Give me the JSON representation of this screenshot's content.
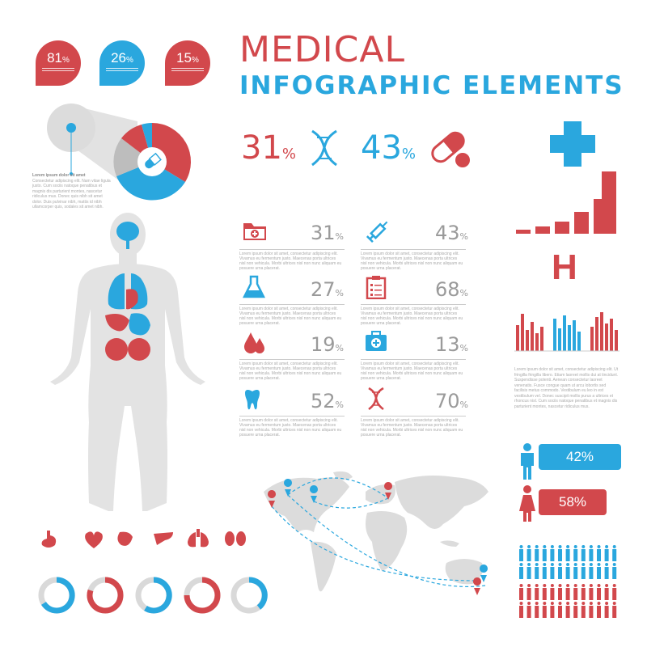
{
  "title": {
    "line1": "MEDICAL",
    "line2": "INFOGRAPHIC ELEMENTS"
  },
  "drops": [
    {
      "value": "81",
      "unit": "%",
      "color": "#d2484c"
    },
    {
      "value": "26",
      "unit": "%",
      "color": "#2aa7de"
    },
    {
      "value": "15",
      "unit": "%",
      "color": "#d2484c"
    }
  ],
  "pie_caption": {
    "heading": "Lorem ipsum dolor sit amet",
    "body": "Consectetur adipiscing elit. Nam vitae ligula justo. Cum sociis natoque penatibus et magnis dis parturient montes, nascetur ridiculus mus. Donec quis nibh sit amet dolor. Duis pulvinar nibh, mattis id nibh ullamcorper quis, sodales sit amet nibh."
  },
  "headline_stats": [
    {
      "value": "31",
      "unit": "%",
      "icon": "dna-icon",
      "color": "#d2484c"
    },
    {
      "value": "43",
      "unit": "%",
      "icon": "pill-icon",
      "color": "#2aa7de"
    }
  ],
  "stats": [
    {
      "value": "31",
      "unit": "%",
      "icon": "medical-folder-icon",
      "text": "Lorem ipsum dolor sit amet, consectetur adipiscing elit. Vivamus eu fermentum justo. Maecenas porta ultrices nisl non vehicula. Morbi ultrices nisl non nunc aliquam eu posuere urna placerat."
    },
    {
      "value": "43",
      "unit": "%",
      "icon": "syringe-icon",
      "text": "Lorem ipsum dolor sit amet, consectetur adipiscing elit. Vivamus eu fermentum justo. Maecenas porta ultrices nisl non vehicula. Morbi ultrices nisl non nunc aliquam eu posuere urna placerat."
    },
    {
      "value": "27",
      "unit": "%",
      "icon": "flask-icon",
      "text": "Lorem ipsum dolor sit amet, consectetur adipiscing elit. Vivamus eu fermentum justo. Maecenas porta ultrices nisl non vehicula. Morbi ultrices nisl non nunc aliquam eu posuere urna placerat."
    },
    {
      "value": "68",
      "unit": "%",
      "icon": "clipboard-icon",
      "text": "Lorem ipsum dolor sit amet, consectetur adipiscing elit. Vivamus eu fermentum justo. Maecenas porta ultrices nisl non vehicula. Morbi ultrices nisl non nunc aliquam eu posuere urna placerat."
    },
    {
      "value": "19",
      "unit": "%",
      "icon": "blood-drop-icon",
      "text": "Lorem ipsum dolor sit amet, consectetur adipiscing elit. Vivamus eu fermentum justo. Maecenas porta ultrices nisl non vehicula. Morbi ultrices nisl non nunc aliquam eu posuere urna placerat."
    },
    {
      "value": "13",
      "unit": "%",
      "icon": "first-aid-kit-icon",
      "text": "Lorem ipsum dolor sit amet, consectetur adipiscing elit. Vivamus eu fermentum justo. Maecenas porta ultrices nisl non vehicula. Morbi ultrices nisl non nunc aliquam eu posuere urna placerat."
    },
    {
      "value": "52",
      "unit": "%",
      "icon": "tooth-icon",
      "text": "Lorem ipsum dolor sit amet, consectetur adipiscing elit. Vivamus eu fermentum justo. Maecenas porta ultrices nisl non vehicula. Morbi ultrices nisl non nunc aliquam eu posuere urna placerat."
    },
    {
      "value": "70",
      "unit": "%",
      "icon": "dna-icon",
      "text": "Lorem ipsum dolor sit amet, consectetur adipiscing elit. Vivamus eu fermentum justo. Maecenas porta ultrices nisl non vehicula. Morbi ultrices nisl non nunc aliquam eu posuere urna placerat."
    }
  ],
  "hospital_letter": "H",
  "right_paragraph": "Lorem ipsum dolor sit amet, consectetur adipiscing elit. Ut fringilla fringilla libero. Etiam laoreet mollis dui at tincidunt. Suspendisse potenti. Aenean consectetur laoreet venenatis. Fusce congue quam ut arcu lobortis sed facilisis metus commodo. Vestibulum eu leo in est vestibulum vel. Donec suscipit mollis purus a ultrices et rhoncus nisl. Cum sociis natoque penatibus et magnis dis parturient montes, nascetur ridiculus mus.",
  "gender": [
    {
      "value": "42%",
      "icon": "male-icon",
      "color": "#2aa7de"
    },
    {
      "value": "58%",
      "icon": "female-icon",
      "color": "#d2484c"
    }
  ],
  "organ_icons": [
    "stomach-icon",
    "heart-icon",
    "liver-icon",
    "pancreas-icon",
    "lungs-icon",
    "kidneys-icon"
  ],
  "colors": {
    "red": "#d2484c",
    "blue": "#2aa7de",
    "gray": "#d9d9d9",
    "dark_gray": "#9a9a9a"
  }
}
